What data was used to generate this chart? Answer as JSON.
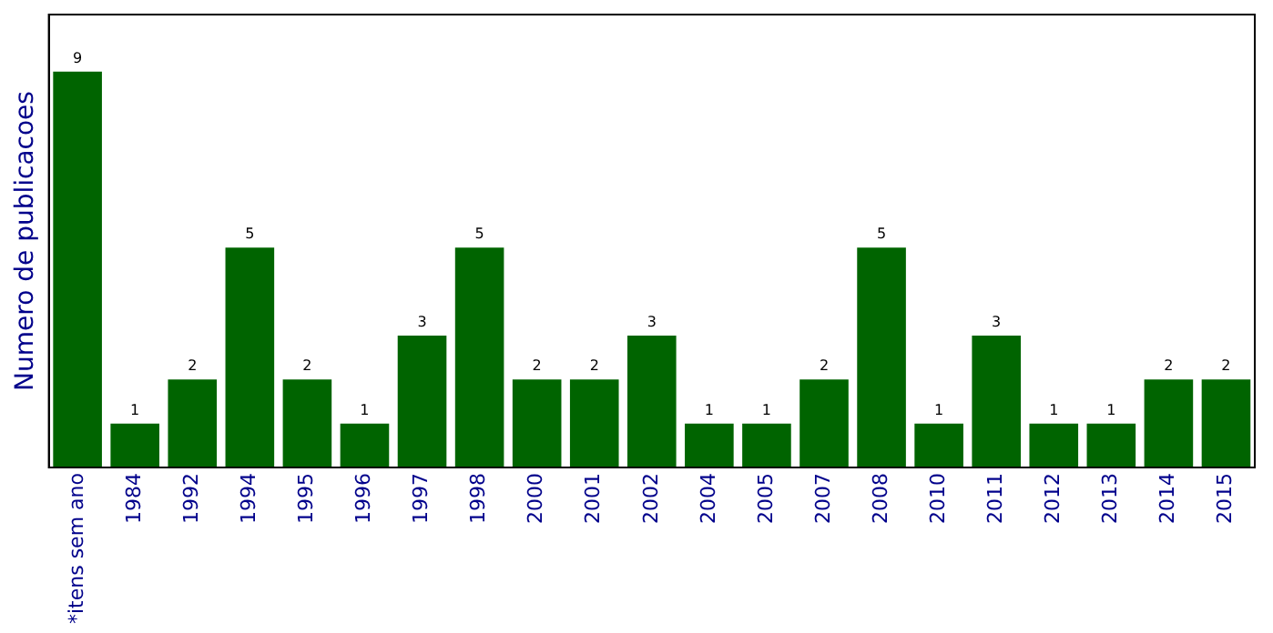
{
  "chart_data": {
    "type": "bar",
    "ylabel": "Numero de publicacoes",
    "categories": [
      "*itens sem ano",
      "1984",
      "1992",
      "1994",
      "1995",
      "1996",
      "1997",
      "1998",
      "2000",
      "2001",
      "2002",
      "2004",
      "2005",
      "2007",
      "2008",
      "2010",
      "2011",
      "2012",
      "2013",
      "2014",
      "2015"
    ],
    "values": [
      9,
      1,
      2,
      5,
      2,
      1,
      3,
      5,
      2,
      2,
      3,
      1,
      1,
      2,
      5,
      1,
      3,
      1,
      1,
      2,
      2
    ],
    "color": "#006400",
    "ylim": [
      0,
      10.3
    ],
    "data_labels": true,
    "grid": false,
    "legend": false,
    "tick_labels": "x"
  }
}
